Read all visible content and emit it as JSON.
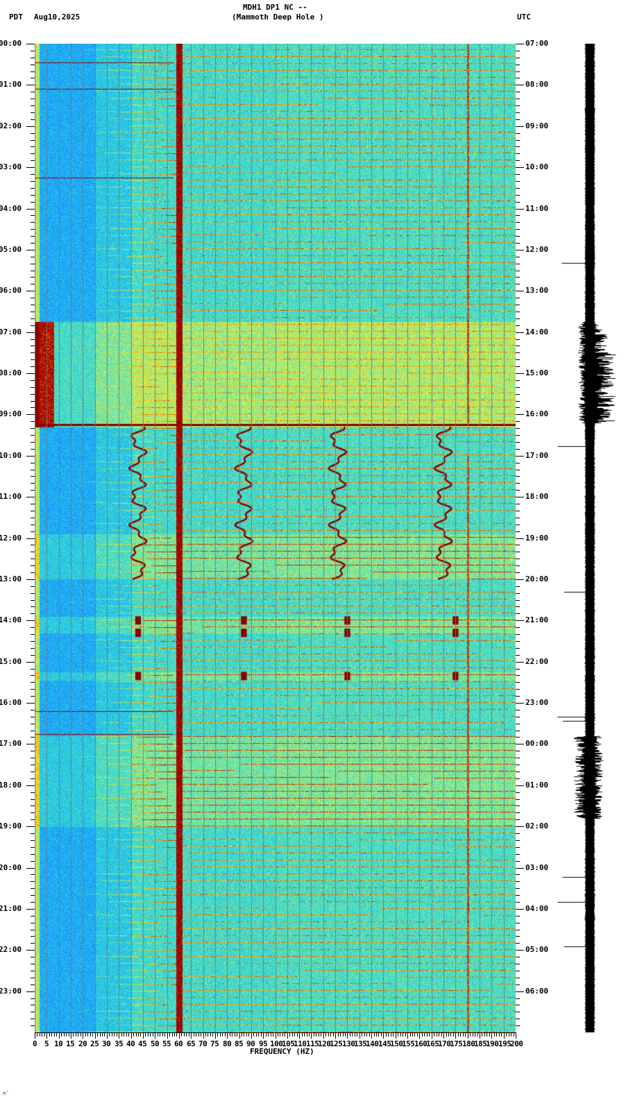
{
  "header": {
    "station_line": "MDH1 DP1 NC --",
    "site_name": "(Mammoth Deep Hole )",
    "left_timezone": "PDT",
    "date": "Aug10,2025",
    "right_timezone": "UTC"
  },
  "footer": {
    "xlabel": "FREQUENCY (HZ)",
    "corner_mark": "∩̆"
  },
  "colors": {
    "background": "#ffffff",
    "low_power": "#1f8fff",
    "mid_low": "#22d0e6",
    "mid": "#e8f040",
    "high": "#f5a000",
    "peak": "#8b0000",
    "grid": "#7f8f8f",
    "trace": "#000000"
  },
  "chart_data": {
    "type": "heatmap",
    "title": "MDH1 DP1 NC -- (Mammoth Deep Hole ) Aug10,2025 spectrogram",
    "xlabel": "FREQUENCY (HZ)",
    "ylabel_left": "PDT",
    "ylabel_right": "UTC",
    "xlim": [
      0,
      200
    ],
    "x_ticks": [
      0,
      5,
      10,
      15,
      20,
      25,
      30,
      35,
      40,
      45,
      50,
      55,
      60,
      65,
      70,
      75,
      80,
      85,
      90,
      95,
      100,
      105,
      110,
      115,
      120,
      125,
      130,
      135,
      140,
      145,
      150,
      155,
      160,
      165,
      170,
      175,
      180,
      185,
      190,
      195,
      200
    ],
    "x_minor_tick_step_hz": 1,
    "vertical_gridlines_every_hz": 5,
    "y_ticks_left": [
      "00:00",
      "01:00",
      "02:00",
      "03:00",
      "04:00",
      "05:00",
      "06:00",
      "07:00",
      "08:00",
      "09:00",
      "10:00",
      "11:00",
      "12:00",
      "13:00",
      "14:00",
      "15:00",
      "16:00",
      "17:00",
      "18:00",
      "19:00",
      "20:00",
      "21:00",
      "22:00",
      "23:00"
    ],
    "y_ticks_right": [
      "07:00",
      "08:00",
      "09:00",
      "10:00",
      "11:00",
      "12:00",
      "13:00",
      "14:00",
      "15:00",
      "16:00",
      "17:00",
      "18:00",
      "19:00",
      "20:00",
      "21:00",
      "22:00",
      "23:00",
      "00:00",
      "01:00",
      "02:00",
      "03:00",
      "04:00",
      "05:00",
      "06:00"
    ],
    "y_minor_tick_step_min": 10,
    "ylim_hours": [
      0,
      24
    ],
    "features": {
      "persistent_line_hz": 60,
      "secondary_line_hz": 180,
      "broadband_burst_pdt": [
        6.8,
        9.3
      ],
      "horizontal_spike_pdt": 9.23,
      "wandering_tracks_hz": [
        43,
        87,
        126,
        170
      ],
      "wandering_tracks_pdt": [
        9.3,
        13.0
      ],
      "banded_tones_hz": [
        43,
        87,
        130,
        175
      ],
      "banded_tones_pdt": [
        14.0,
        14.3,
        15.35
      ],
      "elevated_noise_pdt": [
        17.0,
        19.0
      ],
      "glide_harmonics": "sloping tonal lines rising toward 60 Hz, repeating ~every 10 min"
    },
    "waveform_trace": {
      "description": "seismogram trace to right of spectrogram",
      "high_amplitude_windows_pdt": [
        [
          6.8,
          9.2
        ],
        [
          16.8,
          18.8
        ]
      ]
    },
    "grid": true,
    "legend": "none"
  }
}
